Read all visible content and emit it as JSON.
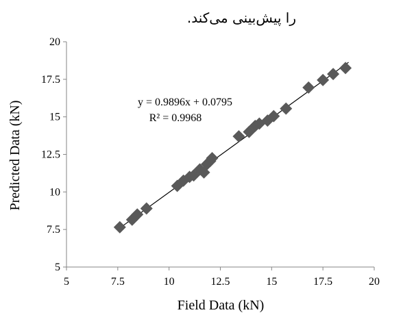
{
  "caption_fragment": "را پیش‌بینی می‌کند.",
  "chart_data": {
    "type": "scatter",
    "xlabel": "Field Data (kN)",
    "ylabel": "Predicted Data (kN)",
    "xlim": [
      5,
      20
    ],
    "ylim": [
      5,
      20
    ],
    "xticks": [
      "5",
      "7.5",
      "10",
      "12.5",
      "15",
      "17.5",
      "20"
    ],
    "yticks": [
      "5",
      "7.5",
      "10",
      "12.5",
      "15",
      "17.5",
      "20"
    ],
    "grid": false,
    "legend": "none",
    "marker": "diamond",
    "marker_color": "#595959",
    "trendline": {
      "slope": 0.9896,
      "intercept": 0.0795,
      "equation_label": "y = 0.9896x + 0.0795",
      "r2_label": "R² = 0.9968",
      "color": "#000000"
    },
    "points": [
      {
        "x": 7.6,
        "y": 7.65
      },
      {
        "x": 8.2,
        "y": 8.15
      },
      {
        "x": 8.45,
        "y": 8.5
      },
      {
        "x": 8.9,
        "y": 8.9
      },
      {
        "x": 10.4,
        "y": 10.4
      },
      {
        "x": 10.7,
        "y": 10.75
      },
      {
        "x": 11.0,
        "y": 11.0
      },
      {
        "x": 11.2,
        "y": 11.1
      },
      {
        "x": 11.5,
        "y": 11.5
      },
      {
        "x": 11.7,
        "y": 11.3
      },
      {
        "x": 11.85,
        "y": 11.85
      },
      {
        "x": 12.0,
        "y": 12.05
      },
      {
        "x": 12.1,
        "y": 12.25
      },
      {
        "x": 13.4,
        "y": 13.7
      },
      {
        "x": 13.9,
        "y": 14.0
      },
      {
        "x": 14.2,
        "y": 14.4
      },
      {
        "x": 14.4,
        "y": 14.55
      },
      {
        "x": 14.8,
        "y": 14.75
      },
      {
        "x": 15.1,
        "y": 15.05
      },
      {
        "x": 15.7,
        "y": 15.55
      },
      {
        "x": 16.8,
        "y": 16.95
      },
      {
        "x": 17.5,
        "y": 17.45
      },
      {
        "x": 18.0,
        "y": 17.85
      },
      {
        "x": 18.6,
        "y": 18.25
      }
    ]
  }
}
